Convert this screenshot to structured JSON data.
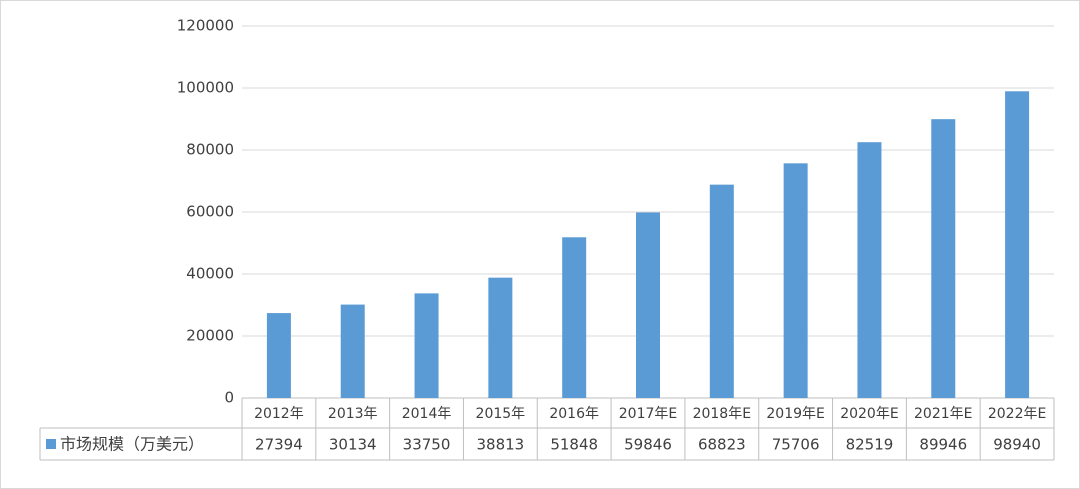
{
  "chart_data": {
    "type": "bar",
    "categories": [
      "2012年",
      "2013年",
      "2014年",
      "2015年",
      "2016年",
      "2017年E",
      "2018年E",
      "2019年E",
      "2020年E",
      "2021年E",
      "2022年E"
    ],
    "series": [
      {
        "name": "市场规模（万美元）",
        "color": "#5b9bd5",
        "values": [
          27394,
          30134,
          33750,
          38813,
          51848,
          59846,
          68823,
          75706,
          82519,
          89946,
          98940
        ]
      }
    ],
    "ylim": [
      0,
      120000
    ],
    "yticks": [
      0,
      20000,
      40000,
      60000,
      80000,
      100000,
      120000
    ],
    "grid": true
  }
}
